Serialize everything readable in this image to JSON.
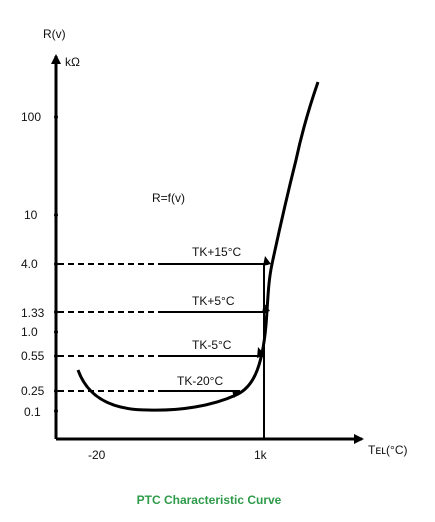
{
  "chart_data": {
    "type": "line",
    "title": "PTC Characteristic Curve",
    "ylabel": "R(v)",
    "yunit": "kΩ",
    "xlabel": "Tᴇʟ(°C)",
    "x_tick_labels": [
      "-20",
      "1k"
    ],
    "y_tick_labels": [
      "100",
      "10",
      "4.0",
      "1.33",
      "1.0",
      "0.55",
      "0.25",
      "0.1"
    ],
    "function_label": "R=f(v)",
    "annotations": [
      "TK+15°C",
      "TK+5°C",
      "TK-5°C",
      "TK-20°C"
    ],
    "grid": false,
    "legend": "none",
    "colors": {
      "curve": "#000000",
      "axes": "#000000",
      "title": "#2e9b4a"
    }
  }
}
